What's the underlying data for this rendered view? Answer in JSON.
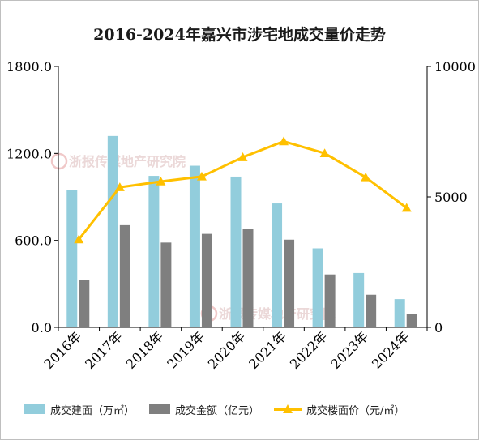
{
  "chart_data": {
    "type": "bar",
    "title": "2016-2024年嘉兴市涉宅地成交量价走势",
    "categories": [
      "2016年",
      "2017年",
      "2018年",
      "2019年",
      "2020年",
      "2021年",
      "2022年",
      "2023年",
      "2024年"
    ],
    "y_left": {
      "ylim": [
        0,
        1800
      ],
      "ticks": [
        "0.0",
        "600.0",
        "1200.0",
        "1800.0"
      ]
    },
    "y_right": {
      "ylim": [
        0,
        10000
      ],
      "ticks": [
        "0",
        "5000",
        "10000"
      ]
    },
    "series": [
      {
        "name": "成交建面（万㎡）",
        "type": "bar",
        "axis": "left",
        "color": "#92cddc",
        "values": [
          950,
          1320,
          1045,
          1115,
          1040,
          855,
          545,
          375,
          195
        ]
      },
      {
        "name": "成交金额（亿元）",
        "type": "bar",
        "axis": "left",
        "color": "#7f7f7f",
        "values": [
          325,
          705,
          585,
          645,
          680,
          605,
          365,
          225,
          90
        ]
      },
      {
        "name": "成交楼面价（元/㎡）",
        "type": "line",
        "axis": "right",
        "color": "#ffc000",
        "values": [
          3370,
          5370,
          5590,
          5780,
          6520,
          7130,
          6670,
          5750,
          4580
        ]
      }
    ],
    "watermark": "浙报传媒地产研究院"
  }
}
